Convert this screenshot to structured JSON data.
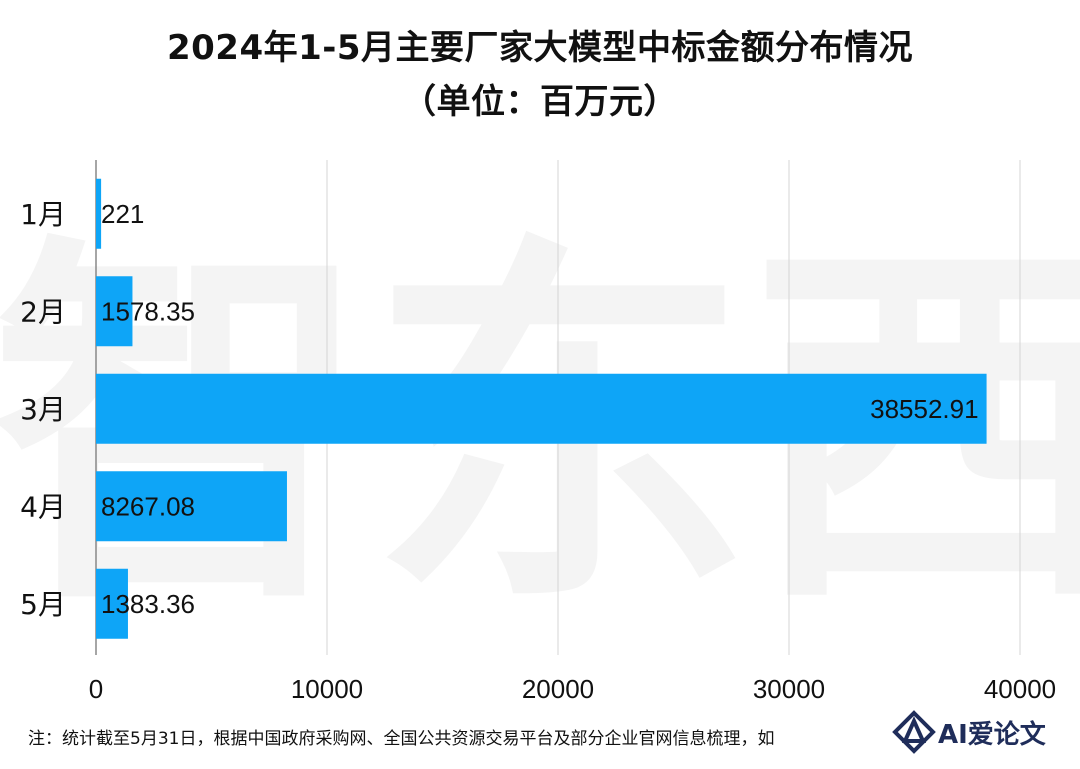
{
  "title_line1": "2024年1-5月主要厂家大模型中标金额分布情况",
  "title_line2": "（单位：百万元）",
  "footnote": "注：统计截至5月31日，根据中国政府采购网、全国公共资源交易平台及部分企业官网信息梳理，如",
  "watermark_text": "AI爱论文",
  "chart_data": {
    "type": "bar",
    "orientation": "horizontal",
    "categories": [
      "1月",
      "2月",
      "3月",
      "4月",
      "5月"
    ],
    "values": [
      221,
      1578.35,
      38552.91,
      8267.08,
      1383.36
    ],
    "value_labels": [
      "221",
      "1578.35",
      "38552.91",
      "8267.08",
      "1383.36"
    ],
    "xlim": [
      0,
      40000
    ],
    "xticks": [
      "0",
      "10000",
      "20000",
      "30000",
      "40000"
    ],
    "tick_values": [
      0,
      10000,
      20000,
      30000,
      40000
    ],
    "grid": true,
    "bar_color": "#0ea5f7",
    "grid_color": "#d4d4d4",
    "axis_color": "#888888",
    "background_watermark": "智东西"
  }
}
